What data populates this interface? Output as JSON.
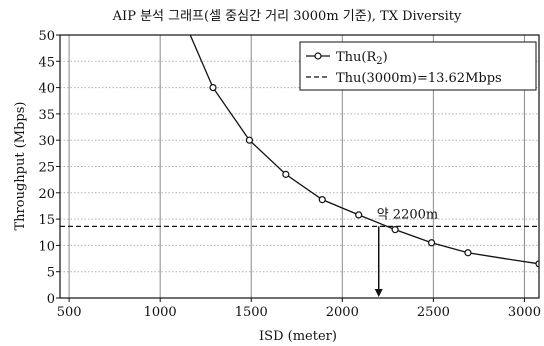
{
  "chart_data": {
    "type": "line",
    "title": "AIP 분석 그래프(셀 중심간 거리 3000m 기준), TX Diversity",
    "xlabel": "ISD (meter)",
    "ylabel": "Throughput (Mbps)",
    "xlim": [
      450,
      3080
    ],
    "ylim": [
      0,
      50
    ],
    "xticks": [
      500,
      1000,
      1500,
      2000,
      2500,
      3000
    ],
    "yticks": [
      0,
      5,
      10,
      15,
      20,
      25,
      30,
      35,
      40,
      45,
      50
    ],
    "grid": true,
    "legend_position": "top-right",
    "series": [
      {
        "name": "Thu(R",
        "name_subscript": "2",
        "name_suffix": ")",
        "style": "solid-circle-markers",
        "x": [
          1090,
          1290,
          1490,
          1690,
          1890,
          2090,
          2290,
          2490,
          2690,
          2890,
          3080
        ],
        "y": [
          56,
          40,
          30,
          23.5,
          18.7,
          15.8,
          13.0,
          10.5,
          8.6,
          7.5,
          6.5
        ],
        "marker_mask": [
          false,
          true,
          true,
          true,
          true,
          true,
          true,
          true,
          true,
          false,
          true
        ]
      },
      {
        "name": "Thu(3000m)=13.62Mbps",
        "style": "dashed",
        "y": 13.62
      }
    ],
    "annotations": [
      {
        "text": "약 2200m",
        "x": 2200,
        "y": 13.62,
        "arrow_to": 0
      }
    ]
  }
}
